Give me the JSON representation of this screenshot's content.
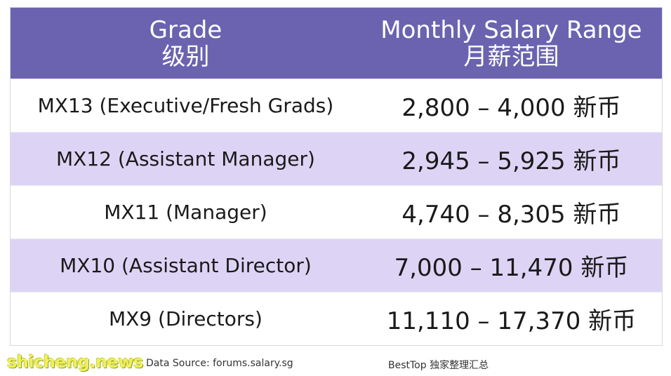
{
  "table": {
    "header": {
      "grade_en": "Grade",
      "grade_zh": "级别",
      "range_en": "Monthly Salary Range",
      "range_zh": "月薪范围"
    },
    "rows": [
      {
        "grade": "MX13 (Executive/Fresh Grads)",
        "range": "2,800 – 4,000 新币"
      },
      {
        "grade": "MX12 (Assistant Manager)",
        "range": "2,945 – 5,925 新币"
      },
      {
        "grade": "MX11 (Manager)",
        "range": "4,740 – 8,305 新币"
      },
      {
        "grade": "MX10 (Assistant Director)",
        "range": "7,000 – 11,470 新币"
      },
      {
        "grade": "MX9 (Directors)",
        "range": "11,110 – 17,370 新币"
      }
    ]
  },
  "footer": {
    "watermark": "shicheng.news",
    "source": "Data Source: forums.salary.sg",
    "credit": "BestTop 独家整理汇总"
  },
  "colors": {
    "header_bg": "#6b63b0",
    "stripe_bg": "#ddd4f5",
    "watermark": "#f2ef5b"
  }
}
